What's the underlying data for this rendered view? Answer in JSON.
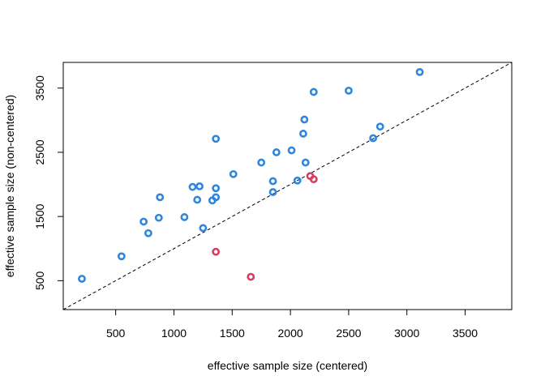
{
  "chart_data": {
    "type": "scatter",
    "title": "",
    "xlabel": "effective sample size (centered)",
    "ylabel": "effective sample size (non-centered)",
    "xlim": [
      50,
      3900
    ],
    "ylim": [
      50,
      3900
    ],
    "x_ticks": [
      500,
      1000,
      1500,
      2000,
      2500,
      3000,
      3500
    ],
    "y_ticks": [
      500,
      1500,
      2500,
      3500
    ],
    "grid": false,
    "reference_line": {
      "slope": 1,
      "intercept": 0,
      "style": "dashed",
      "color": "#000000"
    },
    "colors": {
      "blue": "#2e86de",
      "red": "#d63d5e"
    },
    "series": [
      {
        "color": "#2e86de",
        "points": [
          {
            "x": 210,
            "y": 530
          },
          {
            "x": 550,
            "y": 880
          },
          {
            "x": 740,
            "y": 1420
          },
          {
            "x": 780,
            "y": 1240
          },
          {
            "x": 870,
            "y": 1480
          },
          {
            "x": 880,
            "y": 1800
          },
          {
            "x": 1090,
            "y": 1490
          },
          {
            "x": 1160,
            "y": 1960
          },
          {
            "x": 1200,
            "y": 1760
          },
          {
            "x": 1220,
            "y": 1970
          },
          {
            "x": 1250,
            "y": 1320
          },
          {
            "x": 1330,
            "y": 1750
          },
          {
            "x": 1360,
            "y": 1800
          },
          {
            "x": 1360,
            "y": 1940
          },
          {
            "x": 1360,
            "y": 2710
          },
          {
            "x": 1510,
            "y": 2160
          },
          {
            "x": 1750,
            "y": 2340
          },
          {
            "x": 1850,
            "y": 1880
          },
          {
            "x": 1850,
            "y": 2050
          },
          {
            "x": 1880,
            "y": 2500
          },
          {
            "x": 2010,
            "y": 2530
          },
          {
            "x": 2060,
            "y": 2060
          },
          {
            "x": 2110,
            "y": 2790
          },
          {
            "x": 2120,
            "y": 3010
          },
          {
            "x": 2130,
            "y": 2340
          },
          {
            "x": 2200,
            "y": 3440
          },
          {
            "x": 2500,
            "y": 3460
          },
          {
            "x": 2710,
            "y": 2720
          },
          {
            "x": 2770,
            "y": 2900
          },
          {
            "x": 3110,
            "y": 3750
          }
        ]
      },
      {
        "color": "#d63d5e",
        "points": [
          {
            "x": 1360,
            "y": 950
          },
          {
            "x": 1660,
            "y": 560
          },
          {
            "x": 2170,
            "y": 2130
          },
          {
            "x": 2200,
            "y": 2080
          }
        ]
      }
    ]
  }
}
